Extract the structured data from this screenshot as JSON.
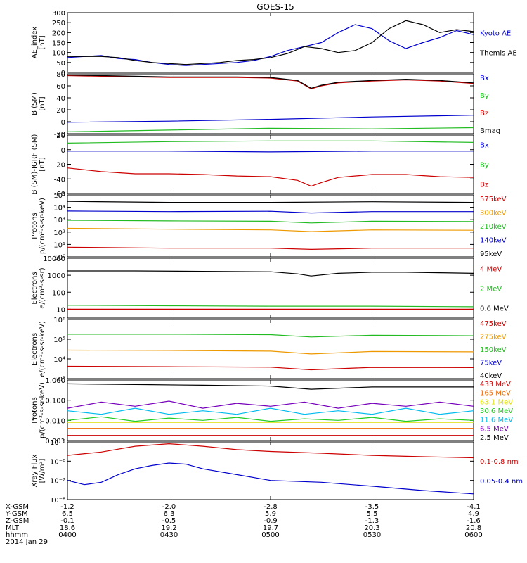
{
  "title": "GOES-15",
  "date_label": "2014 Jan 29",
  "chart_data": [
    {
      "type": "line",
      "ylabel": [
        "AE_index",
        "[nT]"
      ],
      "ylim": [
        0,
        300
      ],
      "log": false,
      "ticks": [
        "300",
        "250",
        "200",
        "150",
        "100",
        "50",
        "0"
      ],
      "tick_values": [
        300,
        250,
        200,
        150,
        100,
        50,
        0
      ],
      "legend": [
        {
          "label": "Kyoto AE",
          "color": "#0000cc"
        },
        {
          "label": "Themis AE",
          "color": "#000000"
        }
      ],
      "series": [
        {
          "name": "Kyoto AE",
          "color": "#0000cc",
          "x": [
            0,
            5,
            10,
            15,
            20,
            25,
            30,
            35,
            40,
            45,
            50,
            55,
            60,
            65,
            70,
            75,
            80,
            85,
            90,
            95,
            100,
            105,
            110,
            115,
            120
          ],
          "y": [
            75,
            80,
            85,
            70,
            65,
            50,
            40,
            35,
            40,
            45,
            50,
            60,
            80,
            110,
            130,
            150,
            200,
            240,
            220,
            160,
            120,
            150,
            175,
            210,
            190
          ]
        },
        {
          "name": "Themis AE",
          "color": "#000000",
          "x": [
            0,
            5,
            10,
            15,
            20,
            25,
            30,
            35,
            40,
            45,
            50,
            55,
            60,
            65,
            70,
            75,
            80,
            85,
            90,
            95,
            100,
            105,
            110,
            115,
            120
          ],
          "y": [
            80,
            80,
            80,
            75,
            60,
            50,
            45,
            40,
            45,
            50,
            60,
            65,
            75,
            95,
            130,
            120,
            100,
            110,
            150,
            220,
            260,
            240,
            200,
            215,
            205
          ]
        }
      ]
    },
    {
      "type": "line",
      "ylabel": [
        "B (SM)",
        "[nT]"
      ],
      "ylim": [
        -20,
        80
      ],
      "log": false,
      "ticks": [
        "80",
        "60",
        "40",
        "20",
        "0",
        "-20"
      ],
      "tick_values": [
        80,
        60,
        40,
        20,
        0,
        -20
      ],
      "legend": [
        {
          "label": "Bx",
          "color": "#0000cc"
        },
        {
          "label": "By",
          "color": "#22bb22"
        },
        {
          "label": "Bz",
          "color": "#cc0000"
        },
        {
          "label": "Bmag",
          "color": "#000000"
        }
      ],
      "series": [
        {
          "name": "Bx",
          "color": "#0000cc",
          "x": [
            0,
            30,
            60,
            90,
            120
          ],
          "y": [
            -1,
            1,
            4,
            8,
            11
          ]
        },
        {
          "name": "By",
          "color": "#22bb22",
          "x": [
            0,
            30,
            60,
            90,
            120
          ],
          "y": [
            -17,
            -14,
            -11,
            -12,
            -10
          ]
        },
        {
          "name": "Bz",
          "color": "#cc0000",
          "x": [
            0,
            10,
            20,
            30,
            40,
            50,
            60,
            68,
            72,
            75,
            80,
            90,
            100,
            110,
            120
          ],
          "y": [
            77,
            76,
            75,
            74,
            74,
            74,
            73,
            68,
            55,
            60,
            65,
            68,
            70,
            68,
            64
          ]
        },
        {
          "name": "Bmag",
          "color": "#000000",
          "x": [
            0,
            10,
            20,
            30,
            40,
            50,
            60,
            68,
            72,
            75,
            80,
            90,
            100,
            110,
            120
          ],
          "y": [
            78,
            77,
            76,
            75,
            75,
            75,
            74,
            69,
            56,
            61,
            66,
            69,
            71,
            69,
            65
          ]
        }
      ]
    },
    {
      "type": "line",
      "ylabel": [
        "B (SM)-IGRF (SM)",
        "[nT]"
      ],
      "ylim": [
        -60,
        20
      ],
      "log": false,
      "ticks": [
        "20",
        "0",
        "-20",
        "-40",
        "-60"
      ],
      "tick_values": [
        20,
        0,
        -20,
        -40,
        -60
      ],
      "legend": [
        {
          "label": "Bx",
          "color": "#0000cc"
        },
        {
          "label": "By",
          "color": "#22bb22"
        },
        {
          "label": "Bz",
          "color": "#cc0000"
        }
      ],
      "series": [
        {
          "name": "Bx",
          "color": "#0000cc",
          "x": [
            0,
            30,
            60,
            90,
            120
          ],
          "y": [
            -2,
            -2,
            -3,
            -2,
            -2
          ]
        },
        {
          "name": "By",
          "color": "#22bb22",
          "x": [
            0,
            30,
            60,
            90,
            120
          ],
          "y": [
            9,
            11,
            12,
            12,
            10
          ]
        },
        {
          "name": "Bz",
          "color": "#cc0000",
          "x": [
            0,
            10,
            20,
            30,
            40,
            50,
            60,
            68,
            72,
            75,
            80,
            90,
            100,
            110,
            120
          ],
          "y": [
            -25,
            -30,
            -33,
            -33,
            -34,
            -36,
            -37,
            -42,
            -50,
            -45,
            -38,
            -34,
            -34,
            -37,
            -38
          ]
        }
      ]
    },
    {
      "type": "line",
      "ylabel": [
        "Protons",
        "p/(cm²-s-sr-keV)"
      ],
      "ylim": [
        1,
        100000
      ],
      "log": true,
      "ticks": [
        "10⁵",
        "10⁴",
        "10³",
        "10²",
        "10¹",
        "10⁰"
      ],
      "tick_values": [
        100000,
        10000,
        1000,
        100,
        10,
        1
      ],
      "legend": [
        {
          "label": "575keV",
          "color": "#cc0000"
        },
        {
          "label": "300keV",
          "color": "#ee9900"
        },
        {
          "label": "210keV",
          "color": "#22bb22"
        },
        {
          "label": "140keV",
          "color": "#0000cc"
        },
        {
          "label": "95keV",
          "color": "#000000"
        }
      ],
      "series": [
        {
          "name": "95keV",
          "color": "#000000",
          "x": [
            0,
            30,
            60,
            90,
            120
          ],
          "y": [
            30000,
            25000,
            25000,
            28000,
            25000
          ]
        },
        {
          "name": "140keV",
          "color": "#0000cc",
          "x": [
            0,
            30,
            60,
            72,
            90,
            120
          ],
          "y": [
            5000,
            4500,
            4800,
            3500,
            4500,
            4500
          ]
        },
        {
          "name": "210keV",
          "color": "#22bb22",
          "x": [
            0,
            30,
            60,
            72,
            90,
            120
          ],
          "y": [
            900,
            800,
            750,
            550,
            750,
            700
          ]
        },
        {
          "name": "300keV",
          "color": "#ee9900",
          "x": [
            0,
            30,
            60,
            72,
            90,
            120
          ],
          "y": [
            200,
            170,
            150,
            110,
            150,
            140
          ]
        },
        {
          "name": "575keV",
          "color": "#cc0000",
          "x": [
            0,
            30,
            60,
            72,
            90,
            120
          ],
          "y": [
            6,
            5,
            5,
            4,
            5,
            5
          ]
        }
      ]
    },
    {
      "type": "line",
      "ylabel": [
        "Electrons",
        "e/(cm²-s-sr)"
      ],
      "ylim": [
        3,
        10000
      ],
      "log": true,
      "ticks": [
        "10000",
        "1000",
        "100",
        "10"
      ],
      "tick_values": [
        10000,
        1000,
        100,
        10
      ],
      "legend": [
        {
          "label": "4 MeV",
          "color": "#cc0000"
        },
        {
          "label": "2 MeV",
          "color": "#22bb22"
        },
        {
          "label": "0.6 MeV",
          "color": "#000000"
        }
      ],
      "series": [
        {
          "name": "0.6 MeV",
          "color": "#000000",
          "x": [
            0,
            20,
            40,
            60,
            68,
            72,
            80,
            90,
            100,
            110,
            120
          ],
          "y": [
            1800,
            1800,
            1700,
            1600,
            1200,
            900,
            1300,
            1500,
            1500,
            1400,
            1300
          ]
        },
        {
          "name": "2 MeV",
          "color": "#22bb22",
          "x": [
            0,
            30,
            60,
            90,
            120
          ],
          "y": [
            17,
            16,
            15,
            15,
            14
          ]
        },
        {
          "name": "4 MeV",
          "color": "#cc0000",
          "x": [
            0,
            30,
            60,
            90,
            120
          ],
          "y": [
            10,
            10,
            10,
            10,
            10
          ]
        }
      ]
    },
    {
      "type": "line",
      "ylabel": [
        "Electrons",
        "e/(cm²-s-sr-keV)"
      ],
      "ylim": [
        1000,
        1000000
      ],
      "log": true,
      "ticks": [
        "10⁶",
        "10⁵",
        "10⁴",
        "10³"
      ],
      "tick_values": [
        1000000,
        100000,
        10000,
        1000
      ],
      "legend": [
        {
          "label": "475keV",
          "color": "#cc0000"
        },
        {
          "label": "275keV",
          "color": "#ee9900"
        },
        {
          "label": "150keV",
          "color": "#22bb22"
        },
        {
          "label": "75keV",
          "color": "#0000cc"
        },
        {
          "label": "40keV",
          "color": "#000000"
        }
      ],
      "series": [
        {
          "name": "150keV",
          "color": "#22bb22",
          "x": [
            0,
            30,
            60,
            72,
            90,
            120
          ],
          "y": [
            180000,
            180000,
            170000,
            130000,
            160000,
            150000
          ]
        },
        {
          "name": "275keV",
          "color": "#ee9900",
          "x": [
            0,
            30,
            60,
            72,
            90,
            120
          ],
          "y": [
            28000,
            27000,
            25000,
            18000,
            24000,
            23000
          ]
        },
        {
          "name": "475keV",
          "color": "#cc0000",
          "x": [
            0,
            30,
            60,
            72,
            90,
            120
          ],
          "y": [
            4200,
            4000,
            3800,
            2800,
            3700,
            3600
          ]
        }
      ]
    },
    {
      "type": "line",
      "ylabel": [
        "Protons",
        "p/(cm²-s-sr-keV)"
      ],
      "ylim": [
        0.001,
        1
      ],
      "log": true,
      "ticks": [
        "1.000",
        "0.100",
        "0.010",
        "0.001"
      ],
      "tick_values": [
        1,
        0.1,
        0.01,
        0.001
      ],
      "legend": [
        {
          "label": "433 MeV",
          "color": "#cc0000"
        },
        {
          "label": "165 MeV",
          "color": "#ee6600"
        },
        {
          "label": "63.1 MeV",
          "color": "#dddd00"
        },
        {
          "label": "30.6 MeV",
          "color": "#22cc22"
        },
        {
          "label": "11.6 MeV",
          "color": "#00bbee"
        },
        {
          "label": "6.5 MeV",
          "color": "#7700bb"
        },
        {
          "label": "2.5 MeV",
          "color": "#000000"
        }
      ],
      "series": [
        {
          "name": "2.5 MeV",
          "color": "#000000",
          "x": [
            0,
            20,
            40,
            60,
            72,
            90,
            120
          ],
          "y": [
            0.65,
            0.6,
            0.55,
            0.5,
            0.35,
            0.45,
            0.45
          ]
        },
        {
          "name": "6.5 MeV",
          "color": "#7700bb",
          "x": [
            0,
            10,
            20,
            30,
            40,
            50,
            60,
            70,
            80,
            90,
            100,
            110,
            120
          ],
          "y": [
            0.04,
            0.08,
            0.05,
            0.09,
            0.04,
            0.07,
            0.05,
            0.08,
            0.04,
            0.07,
            0.05,
            0.08,
            0.05
          ]
        },
        {
          "name": "11.6 MeV",
          "color": "#00bbee",
          "x": [
            0,
            10,
            20,
            30,
            40,
            50,
            60,
            70,
            80,
            90,
            100,
            110,
            120
          ],
          "y": [
            0.03,
            0.02,
            0.04,
            0.02,
            0.03,
            0.02,
            0.04,
            0.02,
            0.03,
            0.02,
            0.04,
            0.02,
            0.03
          ]
        },
        {
          "name": "30.6 MeV",
          "color": "#22cc22",
          "x": [
            0,
            10,
            20,
            30,
            40,
            50,
            60,
            70,
            80,
            90,
            100,
            110,
            120
          ],
          "y": [
            0.01,
            0.015,
            0.009,
            0.013,
            0.01,
            0.014,
            0.009,
            0.012,
            0.01,
            0.014,
            0.009,
            0.012,
            0.01
          ]
        },
        {
          "name": "63.1 MeV",
          "color": "#dddd00",
          "x": [
            0,
            30,
            60,
            90,
            120
          ],
          "y": [
            0.008,
            0.008,
            0.008,
            0.008,
            0.008
          ]
        },
        {
          "name": "165 MeV",
          "color": "#ee6600",
          "x": [
            0,
            30,
            60,
            90,
            120
          ],
          "y": [
            0.004,
            0.004,
            0.004,
            0.004,
            0.004
          ]
        },
        {
          "name": "433 MeV",
          "color": "#cc0000",
          "x": [
            0,
            30,
            60,
            90,
            120
          ],
          "y": [
            0.0018,
            0.0018,
            0.0018,
            0.0018,
            0.0018
          ]
        }
      ]
    },
    {
      "type": "line",
      "ylabel": [
        "Xray Flux",
        "[W/m²]"
      ],
      "ylim": [
        1e-08,
        1e-05
      ],
      "log": true,
      "ticks": [
        "10⁻⁵",
        "10⁻⁶",
        "10⁻⁷",
        "10⁻⁸"
      ],
      "tick_values": [
        1e-05,
        1e-06,
        1e-07,
        1e-08
      ],
      "legend": [
        {
          "label": "0.1-0.8 nm",
          "color": "#cc0000"
        },
        {
          "label": "0.05-0.4 nm",
          "color": "#0000cc"
        }
      ],
      "series": [
        {
          "name": "0.1-0.8 nm",
          "color": "#cc0000",
          "x": [
            0,
            10,
            20,
            30,
            40,
            50,
            60,
            75,
            90,
            105,
            120
          ],
          "y": [
            2e-06,
            3e-06,
            6e-06,
            8e-06,
            6e-06,
            4e-06,
            3.2e-06,
            2.6e-06,
            2e-06,
            1.7e-06,
            1.5e-06
          ]
        },
        {
          "name": "0.05-0.4 nm",
          "color": "#0000cc",
          "x": [
            0,
            5,
            10,
            15,
            20,
            25,
            30,
            35,
            40,
            50,
            60,
            75,
            90,
            105,
            120
          ],
          "y": [
            1e-07,
            6e-08,
            8e-08,
            2e-07,
            4e-07,
            6e-07,
            8e-07,
            7e-07,
            4e-07,
            2e-07,
            1e-07,
            8e-08,
            5e-08,
            3e-08,
            2e-08
          ]
        }
      ]
    }
  ],
  "x_axis": {
    "rows": [
      {
        "label": "X-GSM",
        "values": [
          "-1.2",
          "-2.0",
          "-2.8",
          "-3.5",
          "-4.1"
        ]
      },
      {
        "label": "Y-GSM",
        "values": [
          "6.5",
          "6.3",
          "5.9",
          "5.5",
          "4.9"
        ]
      },
      {
        "label": "Z-GSM",
        "values": [
          "-0.1",
          "-0.5",
          "-0.9",
          "-1.3",
          "-1.6"
        ]
      },
      {
        "label": "MLT",
        "values": [
          "18.6",
          "19.2",
          "19.7",
          "20.3",
          "20.8"
        ]
      },
      {
        "label": "hhmm",
        "values": [
          "0400",
          "0430",
          "0500",
          "0530",
          "0600"
        ]
      }
    ],
    "tick_minutes": [
      0,
      30,
      60,
      90,
      120
    ],
    "xlim": [
      0,
      120
    ]
  }
}
